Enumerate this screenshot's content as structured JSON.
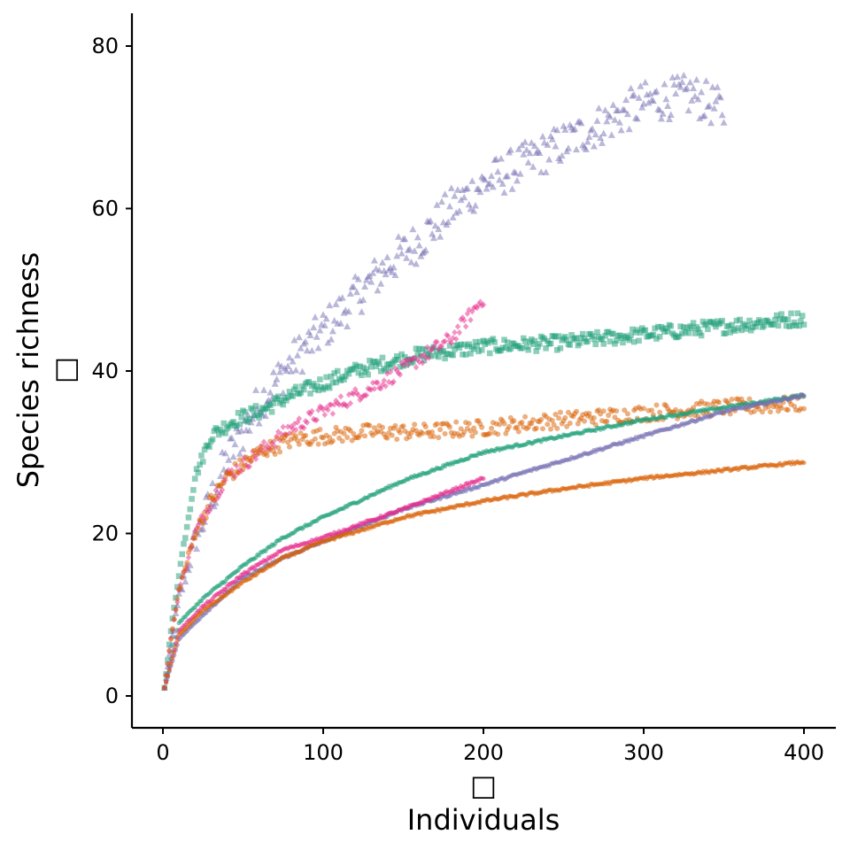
{
  "chart_data": {
    "type": "scatter",
    "title": "",
    "xlabel": "Individuals",
    "ylabel": "Species richness",
    "xlabel_prefix": "□",
    "ylabel_suffix": "□",
    "xlim": [
      0,
      400
    ],
    "ylim": [
      0,
      80
    ],
    "xticks": [
      0,
      100,
      200,
      300,
      400
    ],
    "yticks": [
      0,
      20,
      40,
      60,
      80
    ],
    "grid": false,
    "legend": "none",
    "series": [
      {
        "color": "#7570B3",
        "marker": "triangle",
        "curve": [
          [
            1,
            1
          ],
          [
            5,
            6
          ],
          [
            10,
            12
          ],
          [
            20,
            19
          ],
          [
            30,
            24
          ],
          [
            40,
            29
          ],
          [
            60,
            36
          ],
          [
            80,
            41
          ],
          [
            100,
            45
          ],
          [
            120,
            49
          ],
          [
            140,
            53
          ],
          [
            160,
            56
          ],
          [
            180,
            60
          ],
          [
            200,
            63
          ],
          [
            220,
            65
          ],
          [
            250,
            68
          ],
          [
            280,
            71
          ],
          [
            300,
            73
          ],
          [
            330,
            74
          ],
          [
            350,
            72
          ]
        ]
      },
      {
        "color": "#1B9E77",
        "marker": "square",
        "curve": [
          [
            1,
            1
          ],
          [
            5,
            8
          ],
          [
            10,
            15
          ],
          [
            15,
            21
          ],
          [
            20,
            27
          ],
          [
            30,
            32
          ],
          [
            45,
            34
          ],
          [
            60,
            35
          ],
          [
            80,
            37
          ],
          [
            100,
            38.5
          ],
          [
            120,
            40
          ],
          [
            140,
            41
          ],
          [
            160,
            42
          ],
          [
            180,
            42.5
          ],
          [
            200,
            43
          ],
          [
            250,
            43.5
          ],
          [
            300,
            44.5
          ],
          [
            350,
            45.5
          ],
          [
            400,
            46.5
          ]
        ]
      },
      {
        "color": "#E7298A",
        "marker": "diamond",
        "curve": [
          [
            1,
            1
          ],
          [
            5,
            7
          ],
          [
            10,
            13
          ],
          [
            20,
            20
          ],
          [
            30,
            24
          ],
          [
            40,
            27
          ],
          [
            60,
            30
          ],
          [
            80,
            33
          ],
          [
            100,
            35
          ],
          [
            120,
            37
          ],
          [
            140,
            39
          ],
          [
            160,
            41.5
          ],
          [
            180,
            44
          ],
          [
            200,
            49
          ]
        ]
      },
      {
        "color": "#D95F02",
        "marker": "circle",
        "curve": [
          [
            1,
            1
          ],
          [
            5,
            7
          ],
          [
            10,
            13
          ],
          [
            20,
            20
          ],
          [
            30,
            24
          ],
          [
            40,
            27
          ],
          [
            60,
            30
          ],
          [
            80,
            31.5
          ],
          [
            100,
            32
          ],
          [
            130,
            32.5
          ],
          [
            160,
            32.5
          ],
          [
            200,
            33
          ],
          [
            250,
            34
          ],
          [
            300,
            34.8
          ],
          [
            350,
            35.5
          ],
          [
            400,
            36
          ]
        ]
      },
      {
        "color": "#1B9E77",
        "marker": "circle",
        "curve": [
          [
            1,
            1
          ],
          [
            10,
            9
          ],
          [
            25,
            12
          ],
          [
            50,
            16
          ],
          [
            75,
            19.5
          ],
          [
            100,
            22
          ],
          [
            150,
            26.5
          ],
          [
            200,
            30
          ],
          [
            250,
            32
          ],
          [
            300,
            34
          ],
          [
            350,
            35.5
          ],
          [
            400,
            37
          ]
        ]
      },
      {
        "color": "#7570B3",
        "marker": "circle",
        "curve": [
          [
            1,
            1
          ],
          [
            10,
            7
          ],
          [
            25,
            10
          ],
          [
            50,
            14.5
          ],
          [
            75,
            17
          ],
          [
            100,
            19
          ],
          [
            150,
            23
          ],
          [
            200,
            26
          ],
          [
            250,
            29
          ],
          [
            300,
            32
          ],
          [
            350,
            35
          ],
          [
            400,
            37
          ]
        ]
      },
      {
        "color": "#E7298A",
        "marker": "circle",
        "curve": [
          [
            1,
            1
          ],
          [
            10,
            8
          ],
          [
            25,
            11
          ],
          [
            50,
            15
          ],
          [
            75,
            18
          ],
          [
            100,
            19.5
          ],
          [
            150,
            23
          ],
          [
            200,
            26.8
          ]
        ]
      },
      {
        "color": "#D95F02",
        "marker": "circle",
        "curve": [
          [
            1,
            1
          ],
          [
            10,
            7.5
          ],
          [
            25,
            10.5
          ],
          [
            50,
            14
          ],
          [
            75,
            17
          ],
          [
            100,
            19
          ],
          [
            150,
            22
          ],
          [
            200,
            24
          ],
          [
            250,
            25.5
          ],
          [
            300,
            26.8
          ],
          [
            350,
            27.8
          ],
          [
            400,
            28.8
          ]
        ]
      }
    ]
  }
}
